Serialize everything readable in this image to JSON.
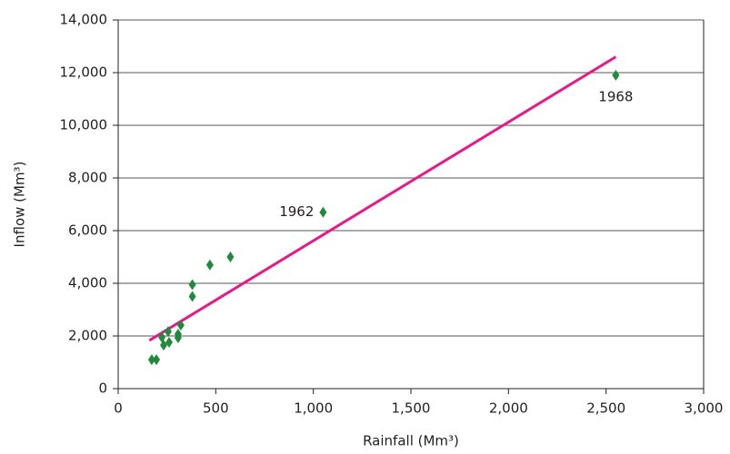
{
  "chart_data": {
    "type": "scatter",
    "xlabel": "Rainfall (Mm³)",
    "ylabel": "Inflow (Mm³)",
    "xlim": [
      0,
      3000
    ],
    "xticks": [
      0,
      500,
      {
        "value": 1000,
        "label": "1,000"
      },
      {
        "value": 1500,
        "label": "1,500"
      },
      {
        "value": 2000,
        "label": "2,000"
      },
      {
        "value": 2500,
        "label": "2,500"
      },
      {
        "value": 3000,
        "label": "3,000"
      }
    ],
    "ylim": [
      0,
      14000
    ],
    "yticks": [
      0,
      {
        "value": 2000,
        "label": "2,000"
      },
      {
        "value": 4000,
        "label": "4,000"
      },
      {
        "value": 6000,
        "label": "6,000"
      },
      {
        "value": 8000,
        "label": "8,000"
      },
      {
        "value": 10000,
        "label": "10,000"
      },
      {
        "value": 12000,
        "label": "12,000"
      },
      {
        "value": 14000,
        "label": "14,000"
      }
    ],
    "grid": true,
    "series": [
      {
        "color": "#1f8a3c",
        "x": [
          172,
          196,
          224,
          233,
          256,
          261,
          307,
          307,
          321,
          380,
          380,
          470,
          575,
          1050,
          2550
        ],
        "values": [
          1100,
          1100,
          1950,
          1650,
          2170,
          1760,
          2070,
          1930,
          2410,
          3950,
          3500,
          4700,
          5000,
          6700,
          11900
        ]
      }
    ],
    "trendline": {
      "color": "#e5198a",
      "x": [
        160,
        2550
      ],
      "values": [
        1830,
        12600
      ]
    },
    "annotations": [
      {
        "text": "1962",
        "x": 1050,
        "y": 6700,
        "side": "left"
      },
      {
        "text": "1968",
        "x": 2550,
        "y": 11900,
        "side": "below"
      }
    ]
  }
}
